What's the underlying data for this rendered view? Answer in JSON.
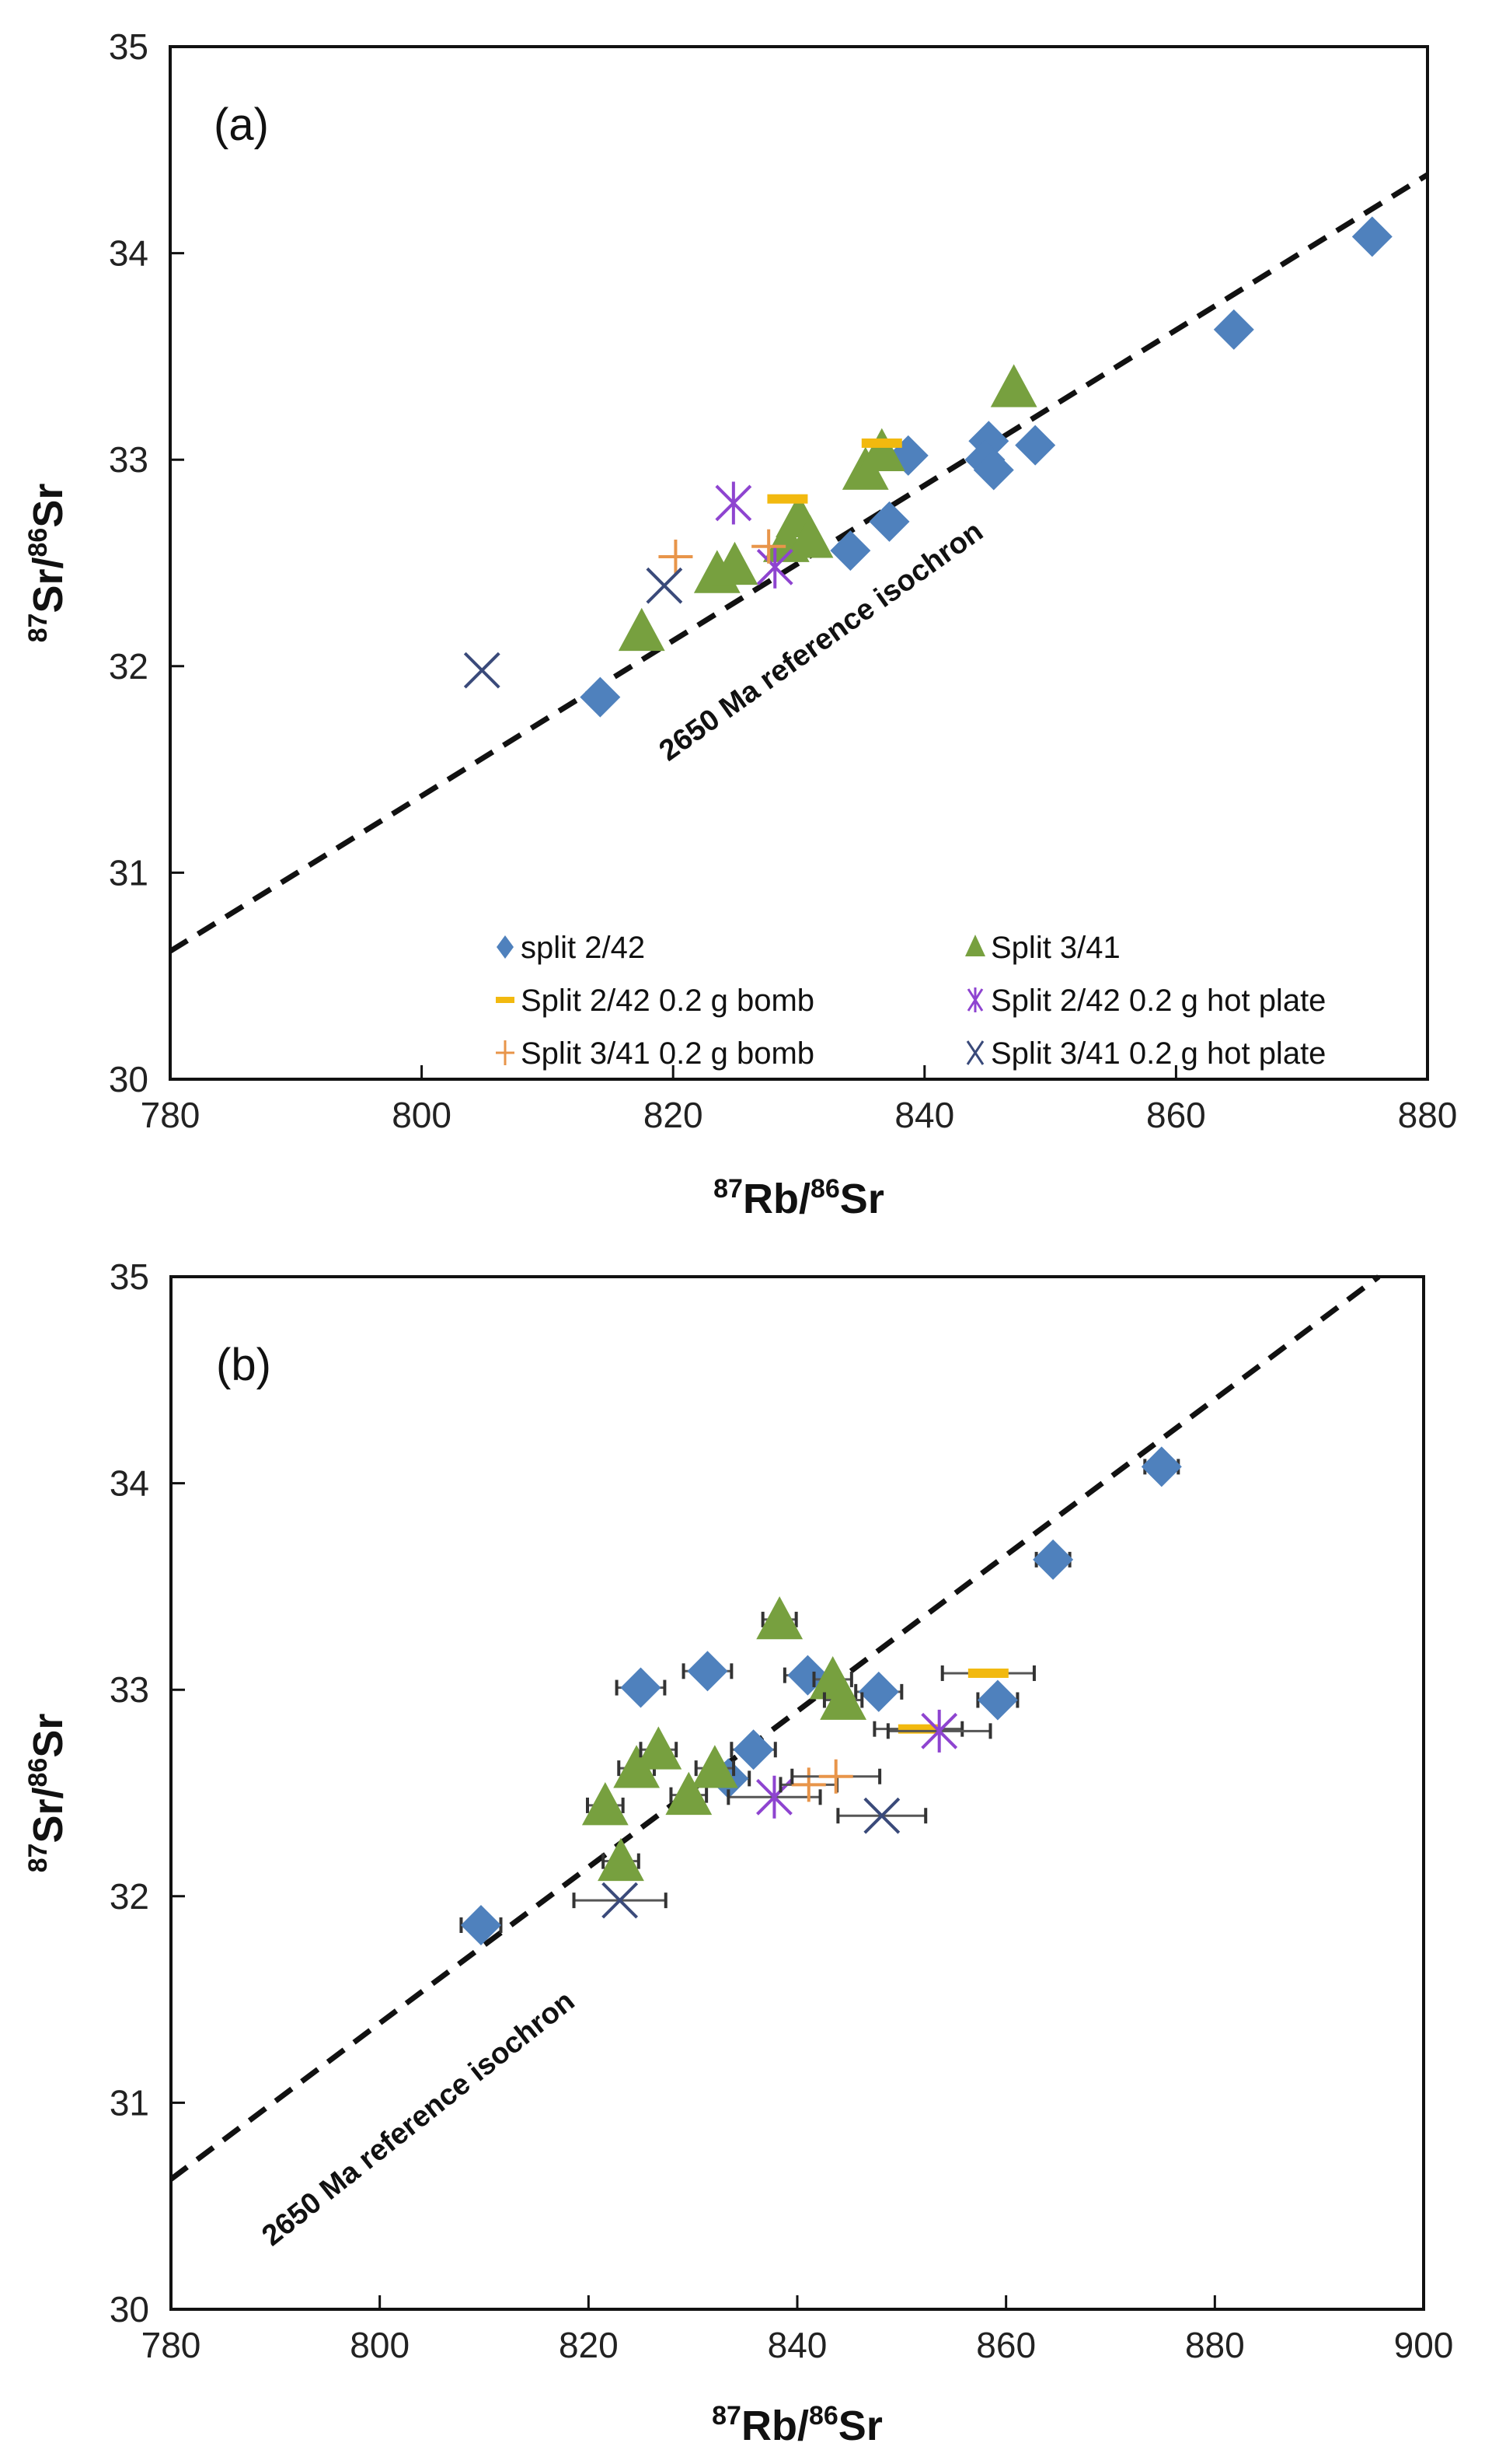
{
  "chart_data": [
    {
      "type": "scatter",
      "panel_label": "(a)",
      "xlabel": {
        "sup1": "87",
        "base1": "Rb/",
        "sup2": "86",
        "base2": "Sr"
      },
      "ylabel": {
        "sup1": "87",
        "base1": "Sr/",
        "sup2": "86",
        "base2": "Sr"
      },
      "xlim": [
        780,
        880
      ],
      "ylim": [
        30,
        35
      ],
      "xticks": [
        780,
        800,
        820,
        840,
        860,
        880
      ],
      "yticks": [
        30,
        31,
        32,
        33,
        34,
        35
      ],
      "grid": false,
      "legend": "bottom-right",
      "reference_line": {
        "label": "2650 Ma reference isochron",
        "x": [
          780,
          880
        ],
        "y": [
          30.62,
          34.38
        ],
        "style": "dashed"
      },
      "series": [
        {
          "name": "split 2/42",
          "marker": "diamond",
          "color": "#4F81BD",
          "points": [
            [
              814.2,
              31.85
            ],
            [
              834.1,
              32.56
            ],
            [
              837.2,
              32.7
            ],
            [
              838.7,
              33.02
            ],
            [
              845.1,
              33.09
            ],
            [
              844.8,
              33.0
            ],
            [
              845.5,
              32.95
            ],
            [
              848.8,
              33.07
            ],
            [
              864.6,
              33.63
            ],
            [
              875.6,
              34.08
            ]
          ]
        },
        {
          "name": "Split 3/41",
          "marker": "triangle",
          "color": "#77A03F",
          "points": [
            [
              817.5,
              32.17
            ],
            [
              823.5,
              32.45
            ],
            [
              824.9,
              32.49
            ],
            [
              829.0,
              32.6
            ],
            [
              830.0,
              32.72
            ],
            [
              830.9,
              32.62
            ],
            [
              835.3,
              32.95
            ],
            [
              836.6,
              33.04
            ],
            [
              847.1,
              33.35
            ]
          ]
        },
        {
          "name": "Split 2/42 0.2 g bomb",
          "marker": "dash",
          "color": "#F2B90F",
          "points": [
            [
              829.1,
              32.81
            ],
            [
              836.6,
              33.08
            ]
          ]
        },
        {
          "name": "Split 2/42 0.2 g hot plate",
          "marker": "asterisk",
          "color": "#8E44D0",
          "points": [
            [
              824.8,
              32.79
            ],
            [
              828.1,
              32.48
            ]
          ]
        },
        {
          "name": "Split 3/41 0.2 g bomb",
          "marker": "plus",
          "color": "#E8954A",
          "points": [
            [
              820.2,
              32.53
            ],
            [
              827.6,
              32.58
            ]
          ]
        },
        {
          "name": "Split 3/41 0.2 g hot plate",
          "marker": "x",
          "color": "#3A4A7A",
          "points": [
            [
              804.8,
              31.98
            ],
            [
              819.3,
              32.39
            ]
          ]
        }
      ]
    },
    {
      "type": "scatter",
      "panel_label": "(b)",
      "xlabel": {
        "sup1": "87",
        "base1": "Rb/",
        "sup2": "86",
        "base2": "Sr"
      },
      "ylabel": {
        "sup1": "87",
        "base1": "Sr/",
        "sup2": "86",
        "base2": "Sr"
      },
      "xlim": [
        780,
        900
      ],
      "ylim": [
        30,
        35
      ],
      "xticks": [
        780,
        800,
        820,
        840,
        860,
        880,
        900
      ],
      "yticks": [
        30,
        31,
        32,
        33,
        34,
        35
      ],
      "grid": false,
      "legend": "none",
      "reference_line": {
        "label": "2650 Ma reference isochron",
        "x": [
          780,
          895.7
        ],
        "y": [
          30.63,
          35.0
        ],
        "style": "dashed"
      },
      "error_bars": "horizontal",
      "series": [
        {
          "name": "split 2/42",
          "marker": "diamond",
          "color": "#4F81BD",
          "points": [
            [
              809.7,
              31.86,
              1.9
            ],
            [
              825.0,
              33.01,
              2.3
            ],
            [
              831.4,
              33.09,
              2.3
            ],
            [
              833.4,
              32.57,
              2.0
            ],
            [
              835.8,
              32.71,
              2.1
            ],
            [
              841.0,
              33.07,
              2.2
            ],
            [
              847.8,
              32.99,
              2.2
            ],
            [
              859.2,
              32.95,
              1.9
            ],
            [
              864.5,
              33.63,
              1.6
            ],
            [
              874.9,
              34.08,
              1.6
            ]
          ]
        },
        {
          "name": "Split 3/41",
          "marker": "triangle",
          "color": "#77A03F",
          "points": [
            [
              821.6,
              32.44,
              1.7
            ],
            [
              823.1,
              32.17,
              1.7
            ],
            [
              824.6,
              32.62,
              1.7
            ],
            [
              826.7,
              32.71,
              1.7
            ],
            [
              829.6,
              32.49,
              1.7
            ],
            [
              832.1,
              32.62,
              1.8
            ],
            [
              838.3,
              33.34,
              1.6
            ],
            [
              843.4,
              33.05,
              1.8
            ],
            [
              844.4,
              32.95,
              1.8
            ]
          ]
        },
        {
          "name": "Split 2/42 0.2 g bomb",
          "marker": "dash",
          "color": "#F2B90F",
          "points": [
            [
              851.6,
              32.81,
              4.2
            ],
            [
              858.3,
              33.08,
              4.4
            ]
          ]
        },
        {
          "name": "Split 2/42 0.2 g hot plate",
          "marker": "asterisk",
          "color": "#8E44D0",
          "points": [
            [
              837.8,
              32.48,
              4.4
            ],
            [
              853.6,
              32.8,
              4.9
            ]
          ]
        },
        {
          "name": "Split 3/41 0.2 g bomb",
          "marker": "plus",
          "color": "#E8954A",
          "points": [
            [
              841.1,
              32.54,
              2.7
            ],
            [
              843.7,
              32.58,
              4.2
            ]
          ]
        },
        {
          "name": "Split 3/41 0.2 g hot plate",
          "marker": "x",
          "color": "#3A4A7A",
          "points": [
            [
              823.0,
              31.98,
              4.4
            ],
            [
              848.1,
              32.39,
              4.2
            ]
          ]
        }
      ]
    }
  ]
}
